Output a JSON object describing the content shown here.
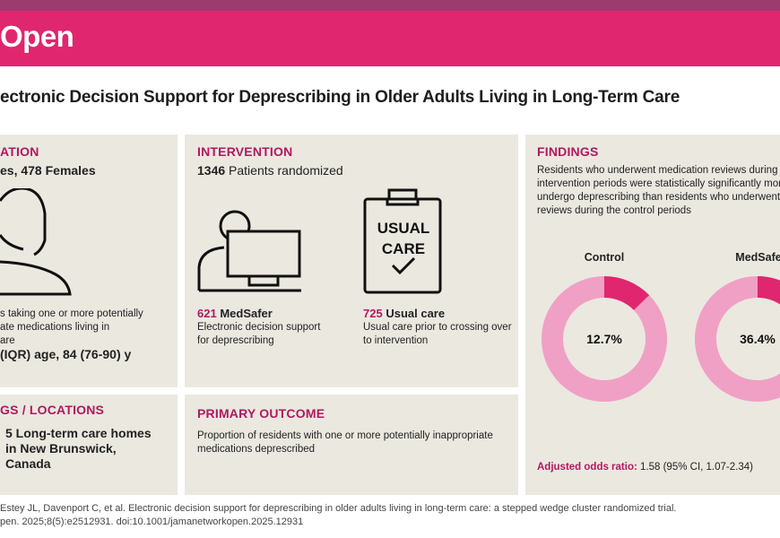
{
  "brand": "Open",
  "title": "ectronic Decision Support for Deprescribing in Older Adults Living in Long-Term Care",
  "population": {
    "heading": "ATION",
    "count_text": "es, 478  Females",
    "desc_line1": "s taking one or more potentially",
    "desc_line2": "ate medications living in",
    "desc_line3": "are",
    "age_text": "(IQR) age, 84 (76-90)  y"
  },
  "intervention": {
    "heading": "INTERVENTION",
    "randomized_number": "1346",
    "randomized_label": "Patients randomized",
    "medsafer_number": "621",
    "medsafer_label": "MedSafer",
    "medsafer_desc_line1": "Electronic decision support",
    "medsafer_desc_line2": "for deprescribing",
    "clipboard_line1": "USUAL",
    "clipboard_line2": "CARE",
    "usual_number": "725",
    "usual_label": "Usual care",
    "usual_desc_line1": "Usual care prior to crossing over",
    "usual_desc_line2": "to intervention"
  },
  "settings": {
    "heading": "GS / LOCATIONS",
    "line1": "5 Long-term care homes",
    "line2": "in New Brunswick,",
    "line3": "Canada"
  },
  "outcome": {
    "heading": "PRIMARY OUTCOME",
    "line1": "Proportion of residents with one or more potentially inappropriate",
    "line2": "medications deprescribed"
  },
  "findings": {
    "heading": "FINDINGS",
    "line1": "Residents who underwent medication reviews during th",
    "line2": "intervention periods were statistically significantly more",
    "line3": "undergo deprescribing than residents who underwent m",
    "line4": "reviews during the control periods",
    "odds_label": "Adjusted odds ratio:",
    "odds_value": "1.58 (95% CI, 1.07-2.34)"
  },
  "chart_data": {
    "type": "pie",
    "charts": [
      {
        "label": "Control",
        "value": 12.7,
        "value_label": "12.7%"
      },
      {
        "label": "MedSafe",
        "value": 36.4,
        "value_label": "36.4%"
      }
    ],
    "colors": {
      "highlight": "#e0266f",
      "remainder": "#f0a0c4"
    }
  },
  "footer": {
    "line1": "Estey JL, Davenport C, et al. Electronic decision support for deprescribing in older adults living in long-term care: a stepped wedge cluster randomized trial.",
    "line2": "pen. 2025;8(5):e2512931. doi:10.1001/jamanetworkopen.2025.12931"
  }
}
